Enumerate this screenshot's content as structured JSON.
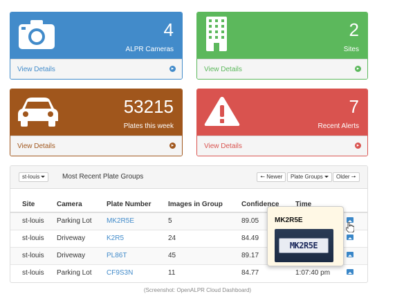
{
  "colors": {
    "cameras": "#428bca",
    "sites": "#5cb85c",
    "plates": "#a0561c",
    "alerts": "#d9534f",
    "link": "#428bca"
  },
  "stats": {
    "cameras": {
      "value": "4",
      "label": "ALPR Cameras",
      "link": "View Details",
      "icon": "camera-icon"
    },
    "sites": {
      "value": "2",
      "label": "Sites",
      "link": "View Details",
      "icon": "building-icon"
    },
    "plates": {
      "value": "53215",
      "label": "Plates this week",
      "link": "View Details",
      "icon": "car-icon"
    },
    "alerts": {
      "value": "7",
      "label": "Recent Alerts",
      "link": "View Details",
      "icon": "warning-icon"
    }
  },
  "plate_groups": {
    "site_select": "st-louis",
    "title": "Most Recent Plate Groups",
    "newer_label": "Newer",
    "group_select": "Plate Groups",
    "older_label": "Older",
    "columns": [
      "Site",
      "Camera",
      "Plate Number",
      "Images in Group",
      "Confidence",
      "Time"
    ],
    "rows": [
      {
        "site": "st-louis",
        "camera": "Parking Lot",
        "plate": "MK2R5E",
        "images": "5",
        "confidence": "89.05",
        "time": ""
      },
      {
        "site": "st-louis",
        "camera": "Driveway",
        "plate": "K2R5",
        "images": "24",
        "confidence": "84.49",
        "time": ""
      },
      {
        "site": "st-louis",
        "camera": "Driveway",
        "plate": "PL86T",
        "images": "45",
        "confidence": "89.17",
        "time": ""
      },
      {
        "site": "st-louis",
        "camera": "Parking Lot",
        "plate": "CF9S3N",
        "images": "11",
        "confidence": "84.77",
        "time": "1:07:40 pm"
      }
    ]
  },
  "tooltip": {
    "title": "MK2R5E",
    "plate_text": "MK2R5E"
  },
  "caption": "(Screenshot: OpenALPR Cloud Dashboard)"
}
